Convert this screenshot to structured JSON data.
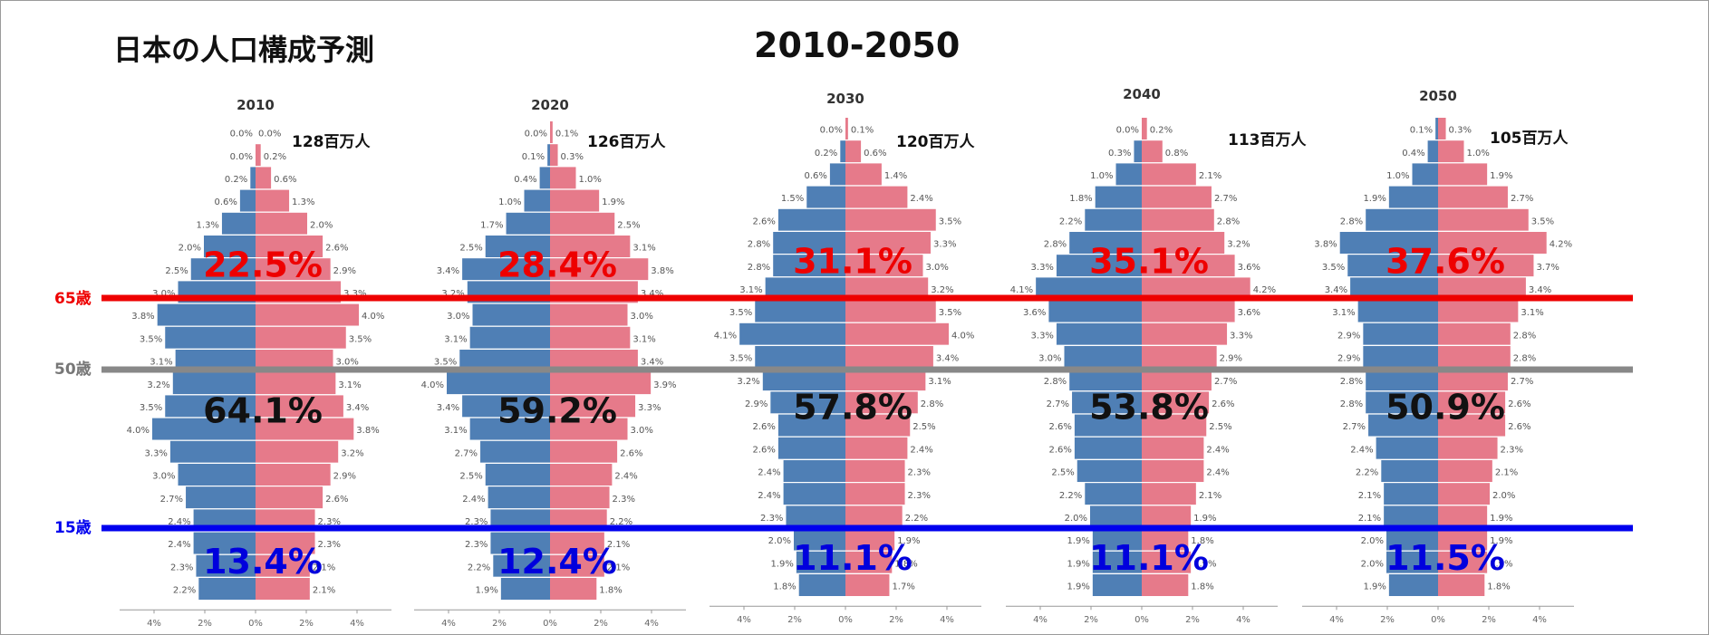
{
  "title": "日本の人口構成予測",
  "subtitle": "2010-2050",
  "chart_data": {
    "type": "bar",
    "orientation": "population-pyramid",
    "unit": "%",
    "xlim": [
      -5,
      5
    ],
    "x_ticks": [
      "4%",
      "2%",
      "0%",
      "2%",
      "4%"
    ],
    "age_lines": [
      {
        "label": "65歳",
        "color": "#ee0000"
      },
      {
        "label": "50歳",
        "color": "#888888"
      },
      {
        "label": "15歳",
        "color": "#0000ee"
      }
    ],
    "colors": {
      "male": "#4f7fb5",
      "female": "#e67a8a",
      "elderly_text": "#ee0000",
      "working_text": "#111111",
      "young_text": "#0000dd"
    },
    "pyramids": [
      {
        "year": "2010",
        "total": "128百万人",
        "elderly_pct": "22.5%",
        "working_pct": "64.1%",
        "young_pct": "13.4%",
        "male": [
          0.0,
          0.0,
          0.2,
          0.6,
          1.3,
          2.0,
          2.5,
          3.0,
          3.8,
          3.5,
          3.1,
          3.2,
          3.5,
          4.0,
          3.3,
          3.0,
          2.7,
          2.4,
          2.4,
          2.3,
          2.2
        ],
        "female": [
          0.0,
          0.2,
          0.6,
          1.3,
          2.0,
          2.6,
          2.9,
          3.3,
          4.0,
          3.5,
          3.0,
          3.1,
          3.4,
          3.8,
          3.2,
          2.9,
          2.6,
          2.3,
          2.3,
          2.1,
          2.1
        ]
      },
      {
        "year": "2020",
        "total": "126百万人",
        "elderly_pct": "28.4%",
        "working_pct": "59.2%",
        "young_pct": "12.4%",
        "male": [
          0.0,
          0.1,
          0.4,
          1.0,
          1.7,
          2.5,
          3.4,
          3.2,
          3.0,
          3.1,
          3.5,
          4.0,
          3.4,
          3.1,
          2.7,
          2.5,
          2.4,
          2.3,
          2.3,
          2.2,
          1.9
        ],
        "female": [
          0.1,
          0.3,
          1.0,
          1.9,
          2.5,
          3.1,
          3.8,
          3.4,
          3.0,
          3.1,
          3.4,
          3.9,
          3.3,
          3.0,
          2.6,
          2.4,
          2.3,
          2.2,
          2.1,
          2.1,
          1.8
        ]
      },
      {
        "year": "2030",
        "total": "120百万人",
        "elderly_pct": "31.1%",
        "working_pct": "57.8%",
        "young_pct": "11.1%",
        "male": [
          0.0,
          0.2,
          0.6,
          1.5,
          2.6,
          2.8,
          2.8,
          3.1,
          3.5,
          4.1,
          3.5,
          3.2,
          2.9,
          2.6,
          2.6,
          2.4,
          2.4,
          2.3,
          2.0,
          1.9,
          1.8
        ],
        "female": [
          0.1,
          0.6,
          1.4,
          2.4,
          3.5,
          3.3,
          3.0,
          3.2,
          3.5,
          4.0,
          3.4,
          3.1,
          2.8,
          2.5,
          2.4,
          2.3,
          2.3,
          2.2,
          1.9,
          1.8,
          1.7
        ]
      },
      {
        "year": "2040",
        "total": "113百万人",
        "elderly_pct": "35.1%",
        "working_pct": "53.8%",
        "young_pct": "11.1%",
        "male": [
          0.0,
          0.3,
          1.0,
          1.8,
          2.2,
          2.8,
          3.3,
          4.1,
          3.6,
          3.3,
          3.0,
          2.8,
          2.7,
          2.6,
          2.6,
          2.5,
          2.2,
          2.0,
          1.9,
          1.9,
          1.9
        ],
        "female": [
          0.2,
          0.8,
          2.1,
          2.7,
          2.8,
          3.2,
          3.6,
          4.2,
          3.6,
          3.3,
          2.9,
          2.7,
          2.6,
          2.5,
          2.4,
          2.4,
          2.1,
          1.9,
          1.8,
          1.9,
          1.8
        ]
      },
      {
        "year": "2050",
        "total": "105百万人",
        "elderly_pct": "37.6%",
        "working_pct": "50.9%",
        "young_pct": "11.5%",
        "male": [
          0.1,
          0.4,
          1.0,
          1.9,
          2.8,
          3.8,
          3.5,
          3.4,
          3.1,
          2.9,
          2.9,
          2.8,
          2.8,
          2.7,
          2.4,
          2.2,
          2.1,
          2.1,
          2.0,
          2.0,
          1.9
        ],
        "female": [
          0.3,
          1.0,
          1.9,
          2.7,
          3.5,
          4.2,
          3.7,
          3.4,
          3.1,
          2.8,
          2.8,
          2.7,
          2.6,
          2.6,
          2.3,
          2.1,
          2.0,
          1.9,
          1.9,
          1.9,
          1.8
        ]
      }
    ]
  }
}
